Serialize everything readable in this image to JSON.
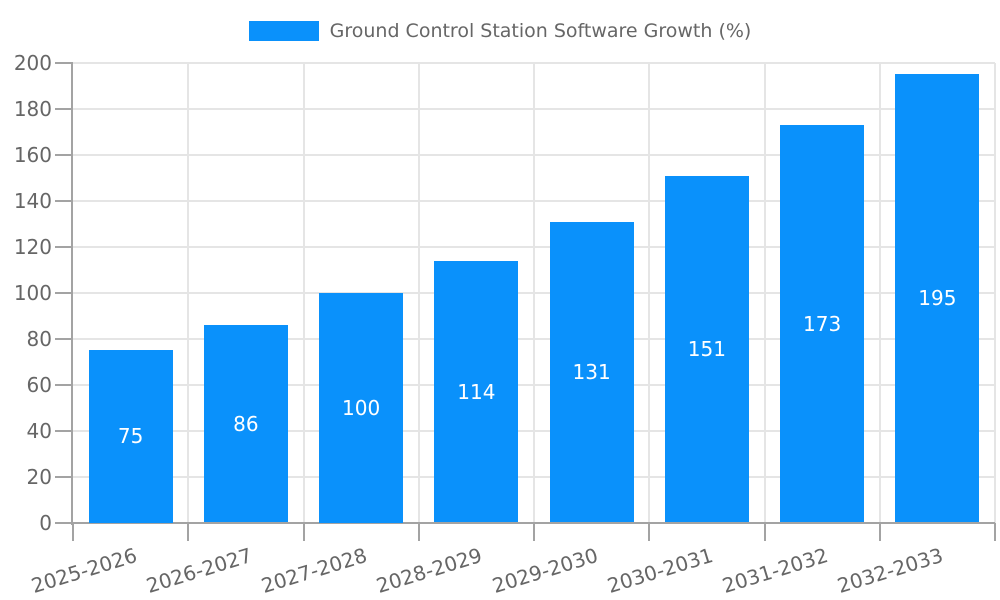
{
  "chart_data": {
    "type": "bar",
    "title": "Ground Control Station Software Growth (%)",
    "categories": [
      "2025-2026",
      "2026-2027",
      "2027-2028",
      "2028-2029",
      "2029-2030",
      "2030-2031",
      "2031-2032",
      "2032-2033"
    ],
    "values": [
      75,
      86,
      100,
      114,
      131,
      151,
      173,
      195
    ],
    "xlabel": "",
    "ylabel": "",
    "ylim": [
      0,
      200
    ],
    "ytick_step": 20,
    "grid": true,
    "legend_position": "top-center",
    "value_labels": "inside-center",
    "colors": {
      "bar": "#0a91fb",
      "value_label": "#ffffff",
      "grid": "#e5e5e5",
      "axis": "#a3a3a3",
      "tick_label": "#666666",
      "legend_text": "#666666",
      "background": "#ffffff"
    }
  }
}
